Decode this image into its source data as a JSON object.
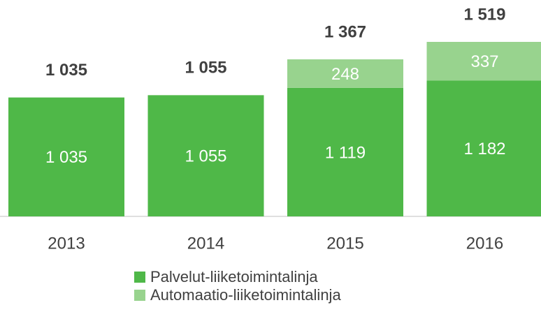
{
  "chart_data": {
    "type": "bar",
    "stacked": true,
    "categories": [
      "2013",
      "2014",
      "2015",
      "2016"
    ],
    "series": [
      {
        "name": "Palvelut-liiketoimintalinja",
        "color": "#4fb848",
        "values": [
          1035,
          1055,
          1119,
          1182
        ],
        "value_labels": [
          "1 035",
          "1 055",
          "1 119",
          "1 182"
        ]
      },
      {
        "name": "Automaatio-liiketoimintalinja",
        "color": "#98d38e",
        "values": [
          null,
          null,
          248,
          337
        ],
        "value_labels": [
          null,
          null,
          "248",
          "337"
        ]
      }
    ],
    "totals": [
      1035,
      1055,
      1367,
      1519
    ],
    "total_labels": [
      "1 035",
      "1 055",
      "1 367",
      "1 519"
    ]
  }
}
